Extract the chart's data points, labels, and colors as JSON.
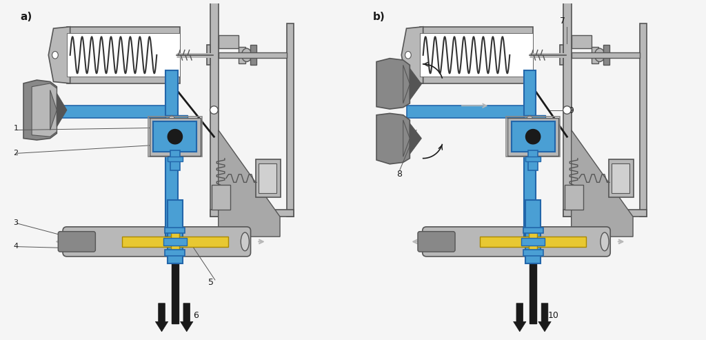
{
  "fig_width": 10.24,
  "fig_height": 4.93,
  "dpi": 100,
  "panel_a_label": "a)",
  "panel_b_label": "b)",
  "blue": "#4a9fd4",
  "yellow": "#e8c832",
  "lgray": "#b8b8b8",
  "dgray": "#555555",
  "mgray": "#888888",
  "darkest": "#1a1a1a",
  "white": "#ffffff",
  "bg": "#f5f5f5"
}
